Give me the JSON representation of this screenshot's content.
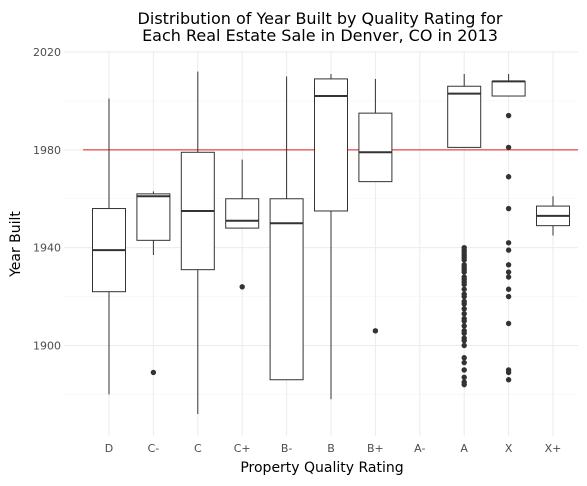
{
  "chart_data": {
    "type": "boxplot",
    "title_lines": [
      "Distribution of Year Built by Quality Rating for",
      "Each Real Estate Sale in Denver, CO in 2013"
    ],
    "xlabel": "Property Quality Rating",
    "ylabel": "Year Built",
    "categories": [
      "D",
      "C-",
      "C",
      "C+",
      "B-",
      "B",
      "B+",
      "A-",
      "A",
      "X",
      "X+"
    ],
    "ylim": [
      1863,
      2020
    ],
    "yticks": [
      1900,
      1940,
      1980,
      2020
    ],
    "grid": true,
    "reference_line": {
      "y": 1980,
      "color": "#e41a1c"
    },
    "box_color": "#333333",
    "point_color": "#333333",
    "boxes": [
      {
        "category": "D",
        "whisker_low": 1880,
        "q1": 1922,
        "median": 1939,
        "q3": 1956,
        "whisker_high": 2001,
        "outliers": []
      },
      {
        "category": "C-",
        "whisker_low": 1937,
        "q1": 1943,
        "median": 1961,
        "q3": 1962,
        "whisker_high": 1963,
        "outliers": [
          1889
        ]
      },
      {
        "category": "C",
        "whisker_low": 1872,
        "q1": 1931,
        "median": 1955,
        "q3": 1979,
        "whisker_high": 2012,
        "outliers": []
      },
      {
        "category": "C+",
        "whisker_low": 1948,
        "q1": 1948,
        "median": 1951,
        "q3": 1960,
        "whisker_high": 1976,
        "outliers": [
          1924
        ]
      },
      {
        "category": "B-",
        "whisker_low": 1886,
        "q1": 1886,
        "median": 1950,
        "q3": 1960,
        "whisker_high": 2010,
        "outliers": []
      },
      {
        "category": "B",
        "whisker_low": 1878,
        "q1": 1955,
        "median": 2002,
        "q3": 2009,
        "whisker_high": 2011,
        "outliers": []
      },
      {
        "category": "B+",
        "whisker_low": 1967,
        "q1": 1967,
        "median": 1979,
        "q3": 1995,
        "whisker_high": 2009,
        "outliers": [
          1906
        ]
      },
      {
        "category": "A",
        "whisker_low": 1981,
        "q1": 1981,
        "median": 2003,
        "q3": 2006,
        "whisker_high": 2011,
        "outliers": [
          1940,
          1939,
          1938,
          1937,
          1936,
          1935,
          1933,
          1932,
          1931,
          1930,
          1928,
          1927,
          1926,
          1925,
          1923,
          1921,
          1920,
          1918,
          1917,
          1915,
          1913,
          1911,
          1910,
          1908,
          1906,
          1905,
          1903,
          1902,
          1900,
          1895,
          1893,
          1890,
          1887,
          1885,
          1884
        ]
      },
      {
        "category": "X",
        "whisker_low": 2002,
        "q1": 2002,
        "median": 2008,
        "q3": 2008,
        "whisker_high": 2011,
        "outliers": [
          1994,
          1981,
          1969,
          1956,
          1942,
          1939,
          1933,
          1930,
          1928,
          1923,
          1920,
          1909,
          1890,
          1889,
          1886
        ]
      },
      {
        "category": "X+",
        "whisker_low": 1945,
        "q1": 1949,
        "median": 1953,
        "q3": 1957,
        "whisker_high": 1961,
        "outliers": []
      }
    ]
  }
}
